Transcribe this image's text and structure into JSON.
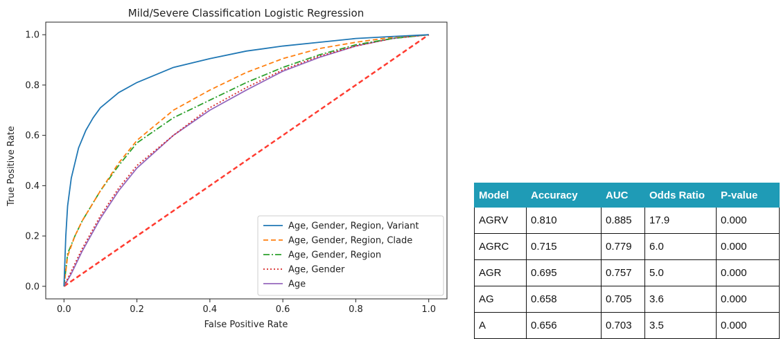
{
  "chart_data": {
    "type": "line",
    "title": "Mild/Severe Classification Logistic Regression",
    "xlabel": "False Positive Rate",
    "ylabel": "True Positive Rate",
    "xlim": [
      -0.05,
      1.05
    ],
    "ylim": [
      -0.05,
      1.05
    ],
    "xticks": [
      "0.0",
      "0.2",
      "0.4",
      "0.6",
      "0.8",
      "1.0"
    ],
    "yticks": [
      "0.0",
      "0.2",
      "0.4",
      "0.6",
      "0.8",
      "1.0"
    ],
    "grid": false,
    "legend_position": "lower-right",
    "series": [
      {
        "name": "Age, Gender, Region, Variant",
        "color": "#1f77b4",
        "dash": "solid",
        "x": [
          0,
          0.005,
          0.01,
          0.02,
          0.04,
          0.06,
          0.08,
          0.1,
          0.15,
          0.2,
          0.3,
          0.4,
          0.5,
          0.6,
          0.7,
          0.8,
          0.9,
          1.0
        ],
        "y": [
          0,
          0.2,
          0.32,
          0.43,
          0.55,
          0.62,
          0.67,
          0.71,
          0.77,
          0.81,
          0.87,
          0.905,
          0.935,
          0.955,
          0.97,
          0.985,
          0.993,
          1.0
        ]
      },
      {
        "name": "Age, Gender, Region, Clade",
        "color": "#ff7f0e",
        "dash": "dashed",
        "x": [
          0,
          0.01,
          0.03,
          0.05,
          0.1,
          0.15,
          0.2,
          0.3,
          0.4,
          0.5,
          0.6,
          0.7,
          0.8,
          0.9,
          1.0
        ],
        "y": [
          0,
          0.12,
          0.2,
          0.26,
          0.38,
          0.49,
          0.58,
          0.7,
          0.78,
          0.85,
          0.905,
          0.945,
          0.97,
          0.99,
          1.0
        ]
      },
      {
        "name": "Age, Gender, Region",
        "color": "#2ca02c",
        "dash": "dashdot",
        "x": [
          0,
          0.01,
          0.03,
          0.05,
          0.1,
          0.15,
          0.2,
          0.3,
          0.4,
          0.5,
          0.6,
          0.7,
          0.8,
          0.9,
          1.0
        ],
        "y": [
          0,
          0.13,
          0.2,
          0.26,
          0.38,
          0.48,
          0.57,
          0.67,
          0.74,
          0.81,
          0.87,
          0.92,
          0.96,
          0.985,
          1.0
        ]
      },
      {
        "name": "Age, Gender",
        "color": "#d62728",
        "dash": "dotted",
        "x": [
          0,
          0.02,
          0.05,
          0.1,
          0.15,
          0.2,
          0.3,
          0.4,
          0.5,
          0.6,
          0.7,
          0.8,
          0.9,
          1.0
        ],
        "y": [
          0,
          0.06,
          0.15,
          0.28,
          0.39,
          0.48,
          0.6,
          0.71,
          0.79,
          0.86,
          0.915,
          0.955,
          0.985,
          1.0
        ]
      },
      {
        "name": "Age",
        "color": "#9467bd",
        "dash": "solid",
        "x": [
          0,
          0.02,
          0.05,
          0.1,
          0.15,
          0.2,
          0.3,
          0.4,
          0.5,
          0.6,
          0.7,
          0.8,
          0.9,
          1.0
        ],
        "y": [
          0,
          0.05,
          0.14,
          0.27,
          0.38,
          0.47,
          0.6,
          0.7,
          0.78,
          0.855,
          0.91,
          0.955,
          0.985,
          1.0
        ]
      }
    ],
    "reference_line": {
      "color": "#ff3b30",
      "dash": "dashed",
      "x": [
        0,
        1
      ],
      "y": [
        0,
        1
      ]
    }
  },
  "table": {
    "header_color": "#1f9bb6",
    "columns": [
      "Model",
      "Accuracy",
      "AUC",
      "Odds Ratio",
      "P-value"
    ],
    "rows": [
      [
        "AGRV",
        "0.810",
        "0.885",
        "17.9",
        "0.000"
      ],
      [
        "AGRC",
        "0.715",
        "0.779",
        "6.0",
        "0.000"
      ],
      [
        "AGR",
        "0.695",
        "0.757",
        "5.0",
        "0.000"
      ],
      [
        "AG",
        "0.658",
        "0.705",
        "3.6",
        "0.000"
      ],
      [
        "A",
        "0.656",
        "0.703",
        "3.5",
        "0.000"
      ]
    ]
  }
}
